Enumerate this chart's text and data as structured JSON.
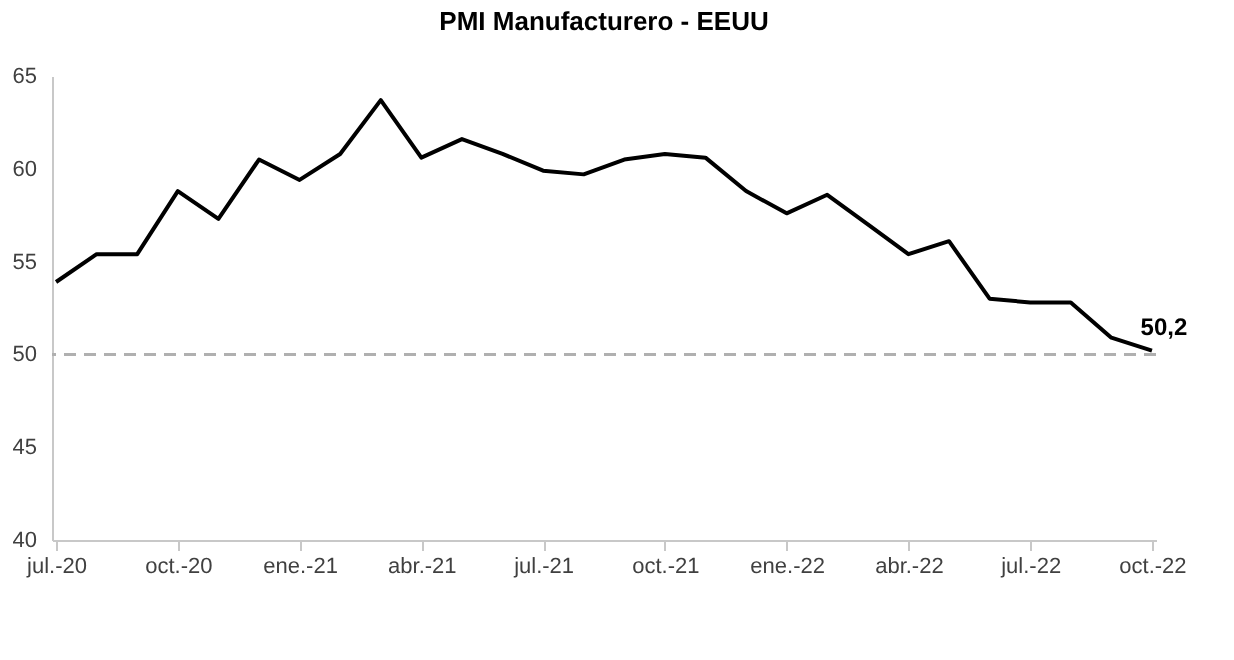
{
  "chart_data": {
    "type": "line",
    "title": "PMI Manufacturero - EEUU",
    "categories": [
      "jul.-20",
      null,
      null,
      "oct.-20",
      null,
      null,
      "ene.-21",
      null,
      null,
      "abr.-21",
      null,
      null,
      "jul.-21",
      null,
      null,
      "oct.-21",
      null,
      null,
      "ene.-22",
      null,
      null,
      "abr.-22",
      null,
      null,
      "jul.-22",
      null,
      null,
      "oct.-22"
    ],
    "series": [
      {
        "color": "#000000",
        "values": [
          53.9,
          55.4,
          55.4,
          58.8,
          57.3,
          60.5,
          59.4,
          60.8,
          63.7,
          60.6,
          61.6,
          60.8,
          59.9,
          59.7,
          60.5,
          60.8,
          60.6,
          58.8,
          57.6,
          58.6,
          57.0,
          55.4,
          56.1,
          53.0,
          52.8,
          52.8,
          50.9,
          50.2
        ]
      }
    ],
    "ylim": [
      40,
      65
    ],
    "yticks": [
      40,
      45,
      50,
      55,
      60,
      65
    ],
    "grid": false,
    "marker": "none",
    "line_style": "solid",
    "ref_lines": [
      {
        "axis": "y",
        "value": 50,
        "color": "#b0b0b0",
        "line_style": "dashed"
      }
    ],
    "annotations": [
      {
        "text": "50,2",
        "x": "oct.-22",
        "y": 50.2
      }
    ]
  }
}
